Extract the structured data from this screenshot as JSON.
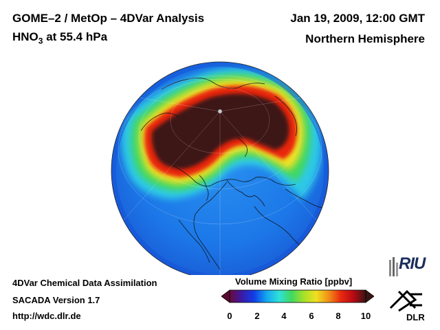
{
  "header": {
    "title": "GOME–2 / MetOp – 4DVar Analysis",
    "species_main": "HNO",
    "species_sub": "3",
    "species_rest": " at 55.4 hPa",
    "datetime": "Jan 19, 2009, 12:00 GMT",
    "region": "Northern Hemisphere"
  },
  "footer": {
    "line1": "4DVar Chemical Data Assimilation",
    "line2": "SACADA Version 1.7",
    "line3": "http://wdc.dlr.de"
  },
  "colorbar": {
    "title": "Volume Mixing Ratio [ppbv]",
    "ticks": [
      "0",
      "2",
      "4",
      "6",
      "8",
      "10"
    ],
    "colors": [
      "#6a0a3a",
      "#3a1aa8",
      "#1040e8",
      "#14a8f0",
      "#30e0d8",
      "#40d860",
      "#a8e028",
      "#f0e020",
      "#f09018",
      "#e82810",
      "#b80a14",
      "#3a1414"
    ]
  },
  "logos": {
    "riu": "RIU",
    "dlr": "DLR"
  },
  "globe": {
    "projection": "orthographic",
    "pole_view": "north-pole"
  }
}
